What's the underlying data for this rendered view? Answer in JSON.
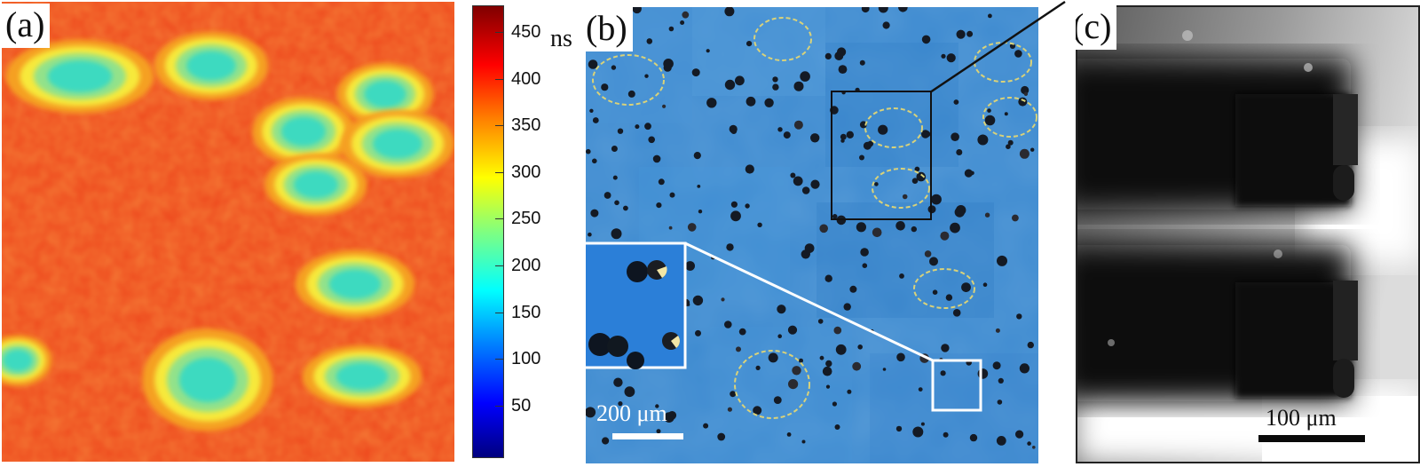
{
  "panels": {
    "a": {
      "label": "(a)"
    },
    "b": {
      "label": "(b)",
      "scale_bar": "200 μm"
    },
    "c": {
      "label": "(c)",
      "scale_bar": "100 μm"
    }
  },
  "colorbar": {
    "unit": "ns",
    "ticks": [
      "450",
      "400",
      "350",
      "300",
      "250",
      "200",
      "150",
      "100",
      "50"
    ],
    "colors": [
      "#00007f",
      "#0000ff",
      "#00ffff",
      "#ffff00",
      "#ff0000",
      "#7f0000"
    ]
  },
  "colors": {
    "map_background": "#ee4a1e",
    "island_core": "#3ddac0",
    "panel_b_background": "#3d8ad0",
    "highlight_circle": "#d9d27a"
  }
}
